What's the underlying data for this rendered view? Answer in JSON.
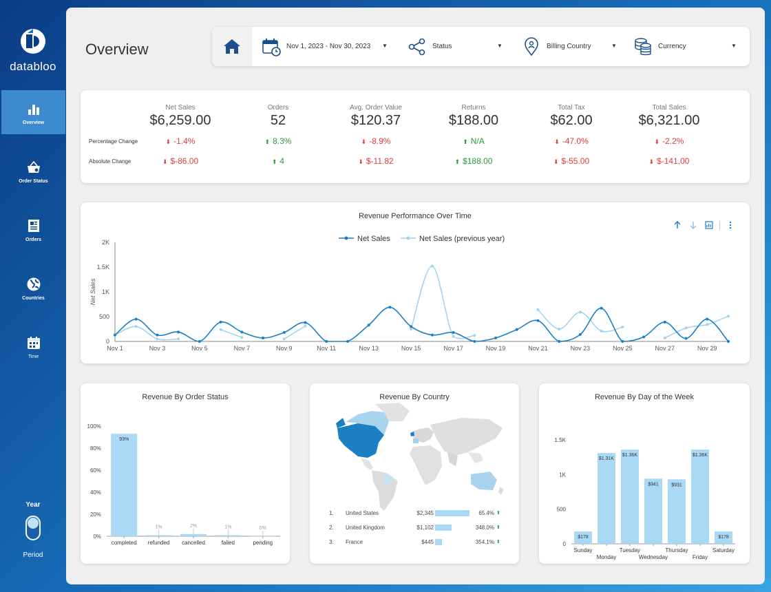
{
  "brand": {
    "name": "databloo"
  },
  "nav": [
    {
      "label": "Overview",
      "icon": "bar-chart-icon",
      "active": true
    },
    {
      "label": "Order Status",
      "icon": "basket-search-icon"
    },
    {
      "label": "Orders",
      "icon": "document-icon"
    },
    {
      "label": "Countries",
      "icon": "globe-icon"
    },
    {
      "label": "Time",
      "icon": "calendar-icon"
    }
  ],
  "toggle": {
    "top": "Year",
    "bottom": "Period"
  },
  "page": {
    "title": "Overview"
  },
  "filters": {
    "date": "Nov 1, 2023 - Nov 30, 2023",
    "status": "Status",
    "country": "Billing Country",
    "currency": "Currency"
  },
  "kpis": {
    "row_labels": {
      "pct": "Percentage Change",
      "abs": "Absolute Change"
    },
    "items": [
      {
        "label": "Net Sales",
        "value": "$6,259.00",
        "pct": "-1.4%",
        "pct_dir": "down",
        "abs": "$-86.00",
        "abs_dir": "down"
      },
      {
        "label": "Orders",
        "value": "52",
        "pct": "8.3%",
        "pct_dir": "up",
        "abs": "4",
        "abs_dir": "up"
      },
      {
        "label": "Avg. Order Value",
        "value": "$120.37",
        "pct": "-8.9%",
        "pct_dir": "down",
        "abs": "$-11.82",
        "abs_dir": "down"
      },
      {
        "label": "Returns",
        "value": "$188.00",
        "pct": "N/A",
        "pct_dir": "up",
        "abs": "$188.00",
        "abs_dir": "up"
      },
      {
        "label": "Total Tax",
        "value": "$62.00",
        "pct": "-47.0%",
        "pct_dir": "down",
        "abs": "$-55.00",
        "abs_dir": "down"
      },
      {
        "label": "Total Sales",
        "value": "$6,321.00",
        "pct": "-2.2%",
        "pct_dir": "down",
        "abs": "$-141.00",
        "abs_dir": "down"
      }
    ]
  },
  "colors": {
    "accent": "#1b7fc4",
    "light": "#9fd3f2",
    "bar": "#a9d9f5",
    "red": "#e03a3a",
    "green": "#2a9a3a"
  },
  "chart_data": [
    {
      "type": "line",
      "title": "Revenue Performance Over Time",
      "ylabel": "Net Sales",
      "ylim": [
        0,
        2000
      ],
      "yticks": [
        "0",
        "500",
        "1K",
        "1.5K",
        "2K"
      ],
      "x": [
        "Nov 1",
        "Nov 2",
        "Nov 3",
        "Nov 4",
        "Nov 5",
        "Nov 6",
        "Nov 7",
        "Nov 8",
        "Nov 9",
        "Nov 10",
        "Nov 11",
        "Nov 12",
        "Nov 13",
        "Nov 14",
        "Nov 15",
        "Nov 16",
        "Nov 17",
        "Nov 18",
        "Nov 19",
        "Nov 20",
        "Nov 21",
        "Nov 22",
        "Nov 23",
        "Nov 24",
        "Nov 25",
        "Nov 26",
        "Nov 27",
        "Nov 28",
        "Nov 29",
        "Nov 30"
      ],
      "xtick_labels": [
        "Nov 1",
        "Nov 3",
        "Nov 5",
        "Nov 7",
        "Nov 9",
        "Nov 11",
        "Nov 13",
        "Nov 15",
        "Nov 17",
        "Nov 19",
        "Nov 21",
        "Nov 23",
        "Nov 25",
        "Nov 27",
        "Nov 29"
      ],
      "series": [
        {
          "name": "Net Sales",
          "values": [
            130,
            450,
            130,
            190,
            0,
            390,
            190,
            70,
            180,
            380,
            0,
            0,
            330,
            690,
            300,
            130,
            180,
            0,
            70,
            240,
            420,
            0,
            140,
            670,
            0,
            90,
            390,
            60,
            450,
            0
          ]
        },
        {
          "name": "Net Sales (previous year)",
          "values": [
            130,
            300,
            50,
            50,
            null,
            240,
            80,
            null,
            50,
            310,
            null,
            null,
            null,
            null,
            250,
            1520,
            100,
            120,
            null,
            null,
            640,
            250,
            590,
            210,
            290,
            null,
            70,
            270,
            340,
            510
          ]
        }
      ]
    },
    {
      "type": "bar",
      "title": "Revenue By Order Status",
      "categories": [
        "completed",
        "refunded",
        "cancelled",
        "failed",
        "pending"
      ],
      "values": [
        93,
        1,
        2,
        1,
        0
      ],
      "labels": [
        "93%",
        "1%",
        "2%",
        "1%",
        "0%"
      ],
      "yticks": [
        "0%",
        "20%",
        "40%",
        "60%",
        "80%",
        "100%"
      ],
      "ylim": [
        0,
        100
      ]
    },
    {
      "type": "table",
      "title": "Revenue By Country",
      "rows": [
        {
          "rank": "1.",
          "country": "United States",
          "value": "$2,345",
          "pct": "65.4%",
          "frac": 1.0
        },
        {
          "rank": "2.",
          "country": "United Kingdom",
          "value": "$1,102",
          "pct": "348.0%",
          "frac": 0.47
        },
        {
          "rank": "3.",
          "country": "France",
          "value": "$445",
          "pct": "354.1%",
          "frac": 0.19
        }
      ]
    },
    {
      "type": "bar",
      "title": "Revenue By Day of the Week",
      "categories": [
        "Sunday",
        "Monday",
        "Tuesday",
        "Wednesday",
        "Thursday",
        "Friday",
        "Saturday"
      ],
      "values": [
        178,
        1310,
        1360,
        941,
        931,
        1360,
        178
      ],
      "labels": [
        "$178",
        "$1.31K",
        "$1.36K",
        "$941",
        "$931",
        "$1.36K",
        "$178"
      ],
      "yticks": [
        "0",
        "500",
        "1K",
        "1.5K"
      ],
      "ylim": [
        0,
        1500
      ]
    }
  ]
}
